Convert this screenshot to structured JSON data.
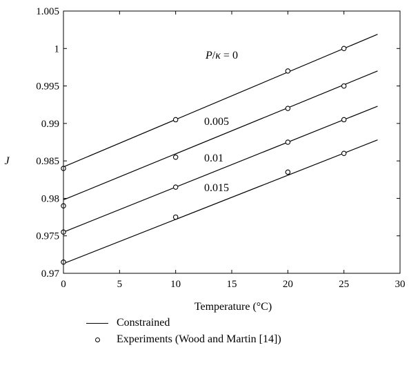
{
  "chart_data": {
    "type": "line",
    "xlabel": "Temperature (°C)",
    "ylabel": "J",
    "xlim": [
      0,
      30
    ],
    "ylim": [
      0.97,
      1.005
    ],
    "x_ticks": [
      0,
      5,
      10,
      15,
      20,
      25,
      30
    ],
    "y_ticks": [
      0.97,
      0.975,
      0.98,
      0.985,
      0.99,
      0.995,
      1,
      1.005
    ],
    "x_tick_labels": [
      "0",
      "5",
      "10",
      "15",
      "20",
      "25",
      "30"
    ],
    "y_tick_labels": [
      "0.97",
      "0.975",
      "0.98",
      "0.985",
      "0.99",
      "0.995",
      "1",
      "1.005"
    ],
    "grid": false,
    "series": [
      {
        "name": "Constrained",
        "kind": "line",
        "label": "P/κ = 0",
        "x": [
          0,
          28
        ],
        "y": [
          0.9842,
          1.0019
        ]
      },
      {
        "name": "Constrained",
        "kind": "line",
        "label": "0.005",
        "x": [
          0,
          28
        ],
        "y": [
          0.9798,
          0.997
        ]
      },
      {
        "name": "Constrained",
        "kind": "line",
        "label": "0.01",
        "x": [
          0,
          28
        ],
        "y": [
          0.9755,
          0.9923
        ]
      },
      {
        "name": "Constrained",
        "kind": "line",
        "label": "0.015",
        "x": [
          0,
          28
        ],
        "y": [
          0.9713,
          0.9878
        ]
      },
      {
        "name": "Experiments (Wood and Martin [14])",
        "kind": "points",
        "x": [
          0,
          10,
          20,
          25,
          0,
          10,
          20,
          25,
          0,
          10,
          20,
          25,
          0,
          10,
          20,
          25
        ],
        "y": [
          0.984,
          0.9905,
          0.997,
          1.0,
          0.979,
          0.9855,
          0.992,
          0.995,
          0.9755,
          0.9815,
          0.9875,
          0.9905,
          0.9715,
          0.9775,
          0.9835,
          0.986
        ]
      }
    ],
    "legend": {
      "placement": "bottom-left",
      "entries": [
        "Constrained",
        "Experiments (Wood and Martin [14])"
      ]
    }
  }
}
